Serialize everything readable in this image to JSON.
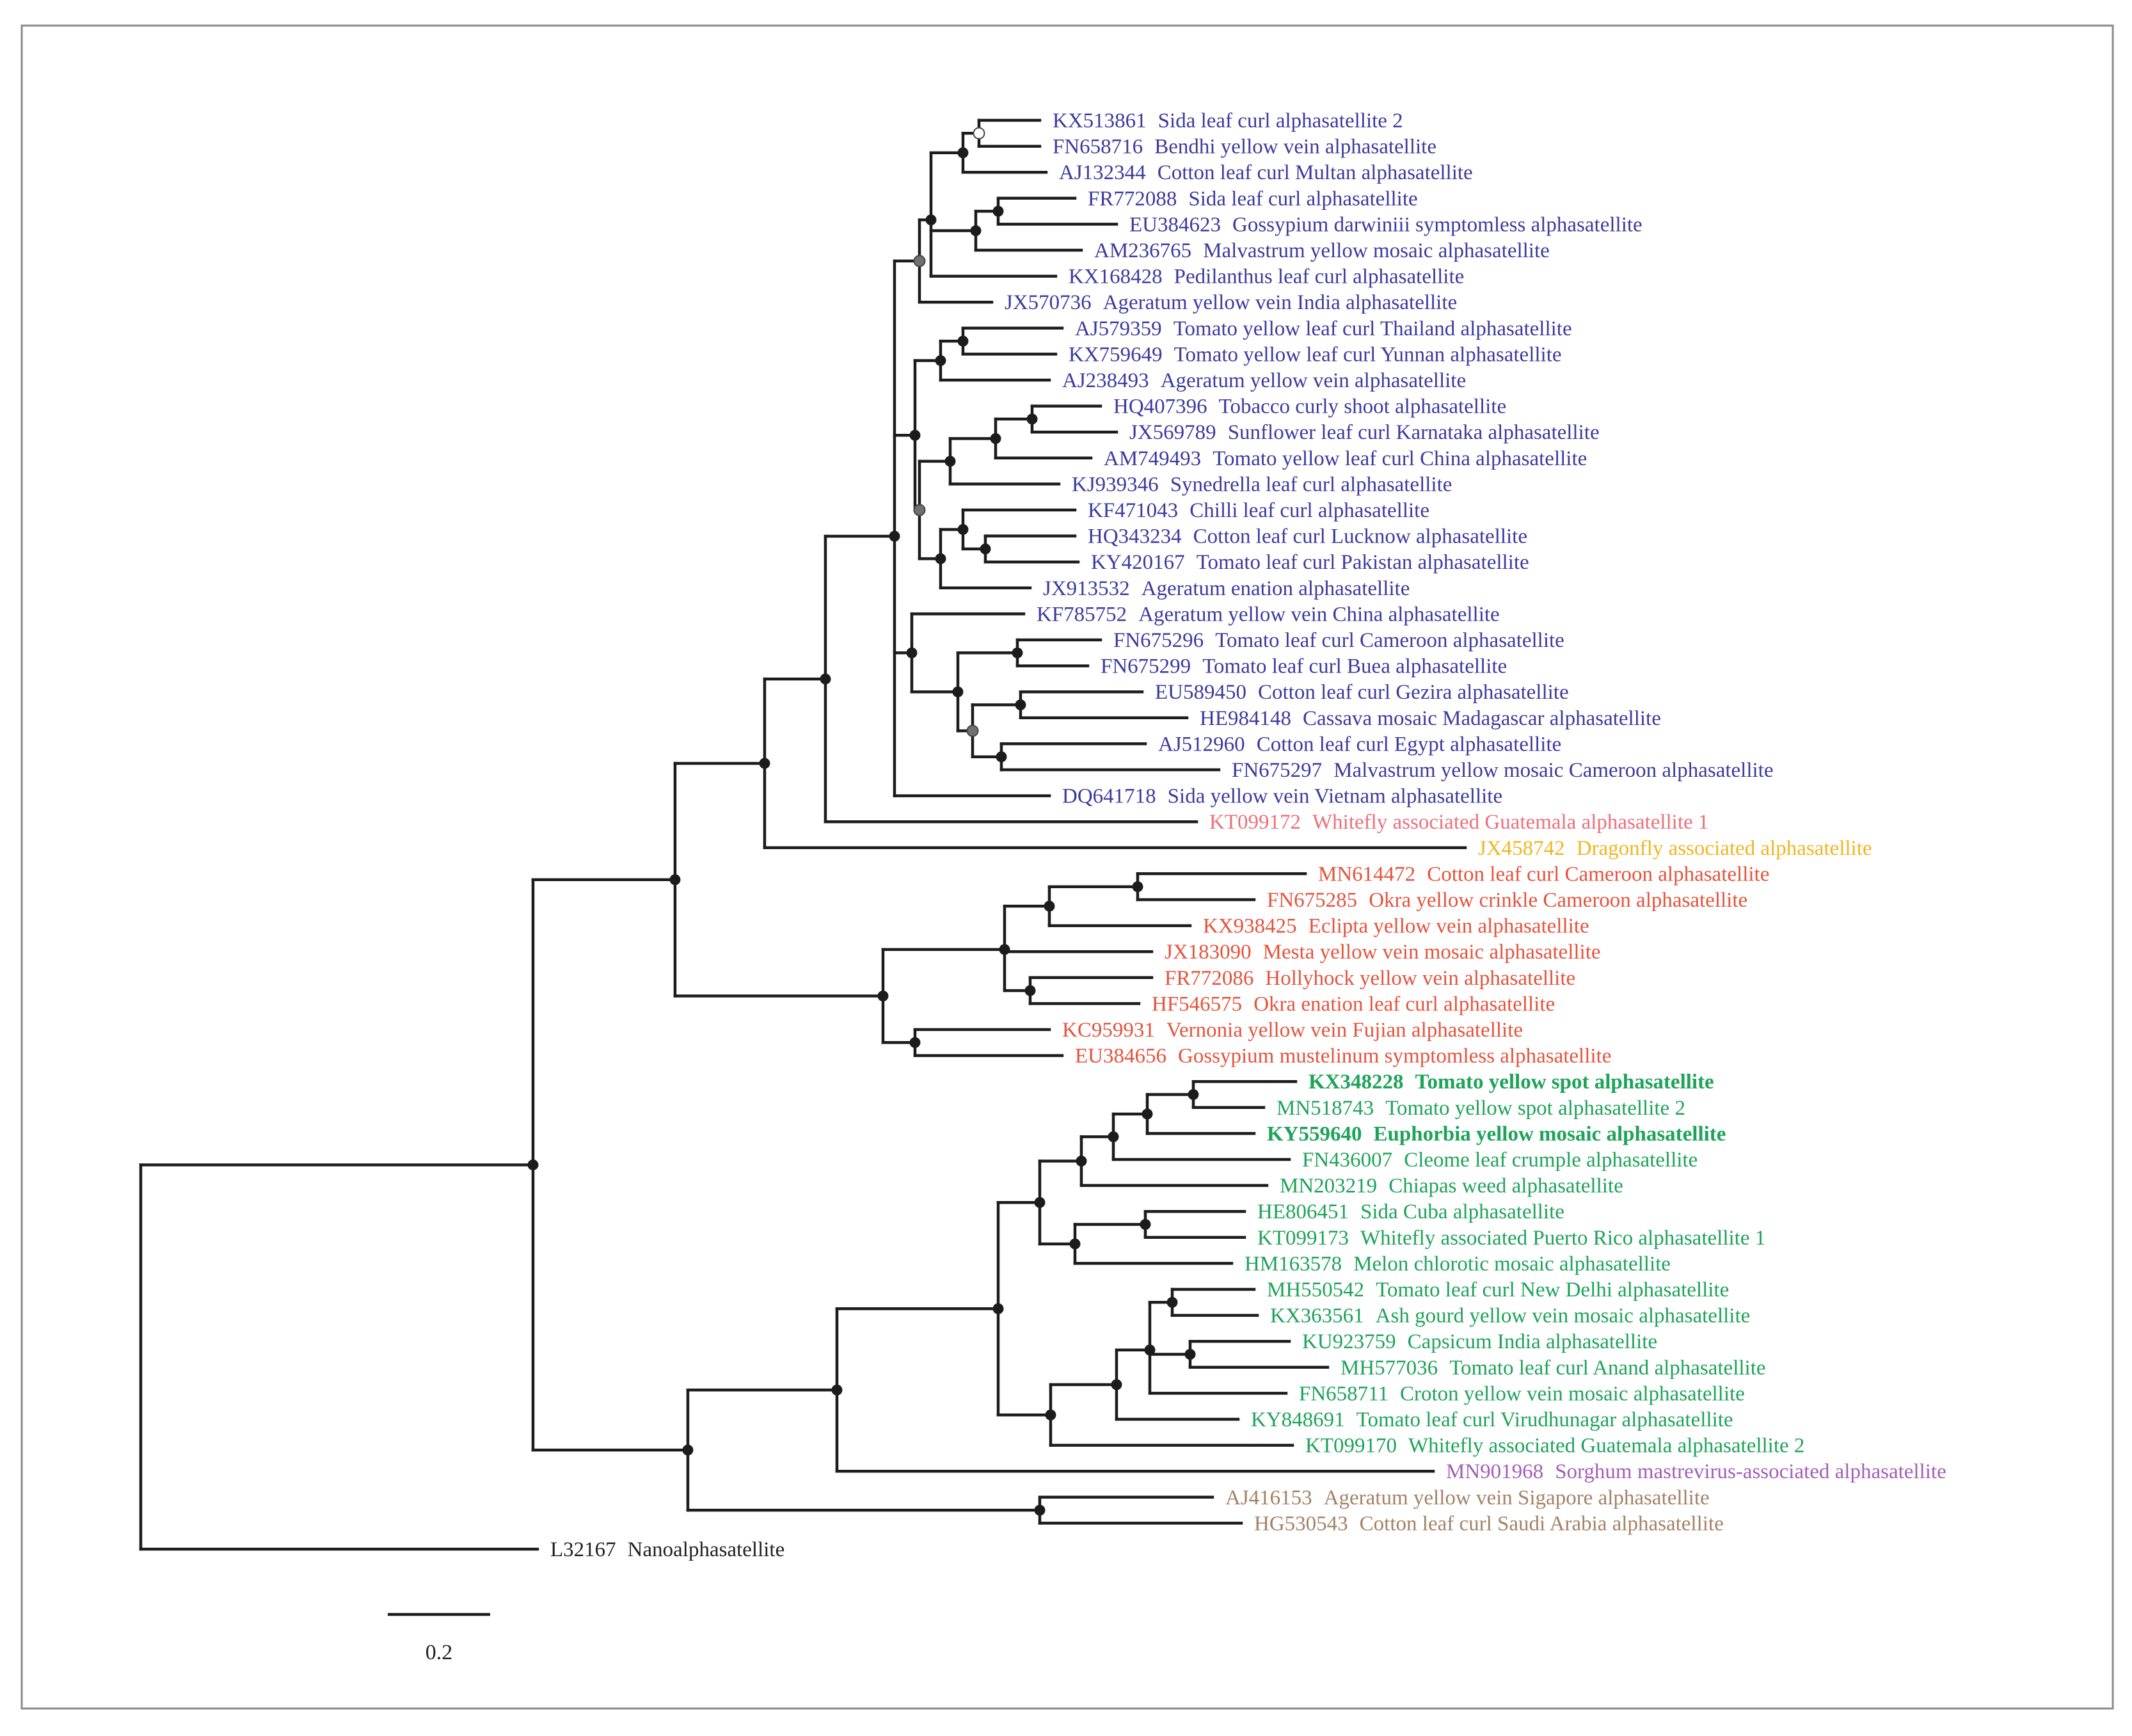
{
  "colors": {
    "blue": "#3d3a9e",
    "pink": "#ee6f7c",
    "yellow": "#f1b521",
    "red": "#e5533c",
    "green": "#1ea35a",
    "purple": "#a25fb6",
    "brown": "#a38266",
    "black": "#222222",
    "node_black": "#1c1c1c",
    "node_grey": "#707070",
    "node_white": "#ffffff"
  },
  "scale_bar": {
    "label": "0.2"
  },
  "taxa": [
    {
      "id": "t1",
      "accession": "KX513861",
      "name": "Sida leaf curl alphasatellite 2",
      "color": "blue",
      "bold": false
    },
    {
      "id": "t2",
      "accession": "FN658716",
      "name": "Bendhi yellow vein alphasatellite",
      "color": "blue",
      "bold": false
    },
    {
      "id": "t3",
      "accession": "AJ132344",
      "name": "Cotton leaf curl Multan alphasatellite",
      "color": "blue",
      "bold": false
    },
    {
      "id": "t4",
      "accession": "FR772088",
      "name": "Sida leaf curl alphasatellite",
      "color": "blue",
      "bold": false
    },
    {
      "id": "t5",
      "accession": "EU384623",
      "name": "Gossypium darwiniii symptomless alphasatellite",
      "color": "blue",
      "bold": false
    },
    {
      "id": "t6",
      "accession": "AM236765",
      "name": "Malvastrum yellow mosaic alphasatellite",
      "color": "blue",
      "bold": false
    },
    {
      "id": "t7",
      "accession": "KX168428",
      "name": "Pedilanthus leaf curl alphasatellite",
      "color": "blue",
      "bold": false
    },
    {
      "id": "t8",
      "accession": "JX570736",
      "name": "Ageratum yellow vein India alphasatellite",
      "color": "blue",
      "bold": false
    },
    {
      "id": "t9",
      "accession": "AJ579359",
      "name": "Tomato yellow leaf curl Thailand alphasatellite",
      "color": "blue",
      "bold": false
    },
    {
      "id": "t10",
      "accession": "KX759649",
      "name": "Tomato yellow leaf curl Yunnan alphasatellite",
      "color": "blue",
      "bold": false
    },
    {
      "id": "t11",
      "accession": "AJ238493",
      "name": "Ageratum yellow vein alphasatellite",
      "color": "blue",
      "bold": false
    },
    {
      "id": "t12",
      "accession": "HQ407396",
      "name": "Tobacco curly shoot alphasatellite",
      "color": "blue",
      "bold": false
    },
    {
      "id": "t13",
      "accession": "JX569789",
      "name": "Sunflower leaf curl Karnataka alphasatellite",
      "color": "blue",
      "bold": false
    },
    {
      "id": "t14",
      "accession": "AM749493",
      "name": "Tomato yellow leaf curl China alphasatellite",
      "color": "blue",
      "bold": false
    },
    {
      "id": "t15",
      "accession": "KJ939346",
      "name": "Synedrella leaf curl alphasatellite",
      "color": "blue",
      "bold": false
    },
    {
      "id": "t16",
      "accession": "KF471043",
      "name": "Chilli leaf curl alphasatellite",
      "color": "blue",
      "bold": false
    },
    {
      "id": "t17",
      "accession": "HQ343234",
      "name": "Cotton leaf curl Lucknow alphasatellite",
      "color": "blue",
      "bold": false
    },
    {
      "id": "t18",
      "accession": "KY420167",
      "name": "Tomato leaf curl Pakistan alphasatellite",
      "color": "blue",
      "bold": false
    },
    {
      "id": "t19",
      "accession": "JX913532",
      "name": "Ageratum enation alphasatellite",
      "color": "blue",
      "bold": false
    },
    {
      "id": "t20",
      "accession": "KF785752",
      "name": "Ageratum yellow vein China alphasatellite",
      "color": "blue",
      "bold": false
    },
    {
      "id": "t21",
      "accession": "FN675296",
      "name": "Tomato leaf curl Cameroon alphasatellite",
      "color": "blue",
      "bold": false
    },
    {
      "id": "t22",
      "accession": "FN675299",
      "name": "Tomato leaf curl Buea alphasatellite",
      "color": "blue",
      "bold": false
    },
    {
      "id": "t23",
      "accession": "EU589450",
      "name": "Cotton leaf curl Gezira alphasatellite",
      "color": "blue",
      "bold": false
    },
    {
      "id": "t24",
      "accession": "HE984148",
      "name": "Cassava mosaic Madagascar alphasatellite",
      "color": "blue",
      "bold": false
    },
    {
      "id": "t25",
      "accession": "AJ512960",
      "name": "Cotton leaf curl Egypt alphasatellite",
      "color": "blue",
      "bold": false
    },
    {
      "id": "t26",
      "accession": "FN675297",
      "name": "Malvastrum yellow mosaic Cameroon alphasatellite",
      "color": "blue",
      "bold": false
    },
    {
      "id": "t27",
      "accession": "DQ641718",
      "name": "Sida yellow vein Vietnam alphasatellite",
      "color": "blue",
      "bold": false
    },
    {
      "id": "t28",
      "accession": "KT099172",
      "name": "Whitefly associated Guatemala alphasatellite 1",
      "color": "pink",
      "bold": false
    },
    {
      "id": "t29",
      "accession": "JX458742",
      "name": "Dragonfly associated alphasatellite",
      "color": "yellow",
      "bold": false
    },
    {
      "id": "t30",
      "accession": "MN614472",
      "name": "Cotton leaf curl Cameroon alphasatellite",
      "color": "red",
      "bold": false
    },
    {
      "id": "t31",
      "accession": "FN675285",
      "name": "Okra yellow crinkle Cameroon alphasatellite",
      "color": "red",
      "bold": false
    },
    {
      "id": "t32",
      "accession": "KX938425",
      "name": "Eclipta yellow vein alphasatellite",
      "color": "red",
      "bold": false
    },
    {
      "id": "t33",
      "accession": "JX183090",
      "name": "Mesta yellow vein mosaic alphasatellite",
      "color": "red",
      "bold": false
    },
    {
      "id": "t34",
      "accession": "FR772086",
      "name": "Hollyhock yellow vein alphasatellite",
      "color": "red",
      "bold": false
    },
    {
      "id": "t35",
      "accession": "HF546575",
      "name": "Okra enation leaf curl alphasatellite",
      "color": "red",
      "bold": false
    },
    {
      "id": "t36",
      "accession": "KC959931",
      "name": "Vernonia yellow vein Fujian alphasatellite",
      "color": "red",
      "bold": false
    },
    {
      "id": "t37",
      "accession": "EU384656",
      "name": "Gossypium mustelinum symptomless alphasatellite",
      "color": "red",
      "bold": false
    },
    {
      "id": "t38",
      "accession": "KX348228",
      "name": "Tomato yellow spot alphasatellite",
      "color": "green",
      "bold": true
    },
    {
      "id": "t39",
      "accession": "MN518743",
      "name": "Tomato yellow spot alphasatellite 2",
      "color": "green",
      "bold": false
    },
    {
      "id": "t40",
      "accession": "KY559640",
      "name": "Euphorbia yellow mosaic alphasatellite",
      "color": "green",
      "bold": true
    },
    {
      "id": "t41",
      "accession": "FN436007",
      "name": "Cleome leaf crumple alphasatellite",
      "color": "green",
      "bold": false
    },
    {
      "id": "t42",
      "accession": "MN203219",
      "name": "Chiapas weed alphasatellite",
      "color": "green",
      "bold": false
    },
    {
      "id": "t43",
      "accession": "HE806451",
      "name": "Sida Cuba alphasatellite",
      "color": "green",
      "bold": false
    },
    {
      "id": "t44",
      "accession": "KT099173",
      "name": "Whitefly associated Puerto Rico alphasatellite 1",
      "color": "green",
      "bold": false
    },
    {
      "id": "t45",
      "accession": "HM163578",
      "name": "Melon chlorotic mosaic alphasatellite",
      "color": "green",
      "bold": false
    },
    {
      "id": "t46",
      "accession": "MH550542",
      "name": "Tomato leaf curl New Delhi alphasatellite",
      "color": "green",
      "bold": false
    },
    {
      "id": "t47",
      "accession": "KX363561",
      "name": "Ash gourd yellow vein mosaic alphasatellite",
      "color": "green",
      "bold": false
    },
    {
      "id": "t48",
      "accession": "KU923759",
      "name": "Capsicum India alphasatellite",
      "color": "green",
      "bold": false
    },
    {
      "id": "t49",
      "accession": "MH577036",
      "name": "Tomato leaf curl Anand alphasatellite",
      "color": "green",
      "bold": false
    },
    {
      "id": "t50",
      "accession": "FN658711",
      "name": "Croton yellow vein mosaic alphasatellite",
      "color": "green",
      "bold": false
    },
    {
      "id": "t51",
      "accession": "KY848691",
      "name": "Tomato leaf curl Virudhunagar alphasatellite",
      "color": "green",
      "bold": false
    },
    {
      "id": "t52",
      "accession": "KT099170",
      "name": "Whitefly associated Guatemala alphasatellite 2",
      "color": "green",
      "bold": false
    },
    {
      "id": "t53",
      "accession": "MN901968",
      "name": "Sorghum mastrevirus-associated alphasatellite",
      "color": "purple",
      "bold": false
    },
    {
      "id": "t54",
      "accession": "AJ416153",
      "name": "Ageratum yellow vein Sigapore alphasatellite",
      "color": "brown",
      "bold": false
    },
    {
      "id": "t55",
      "accession": "HG530543",
      "name": "Cotton leaf curl Saudi Arabia alphasatellite",
      "color": "brown",
      "bold": false
    },
    {
      "id": "t56",
      "accession": "L32167",
      "name": "Nanoalphasatellite",
      "color": "black",
      "bold": false
    }
  ]
}
